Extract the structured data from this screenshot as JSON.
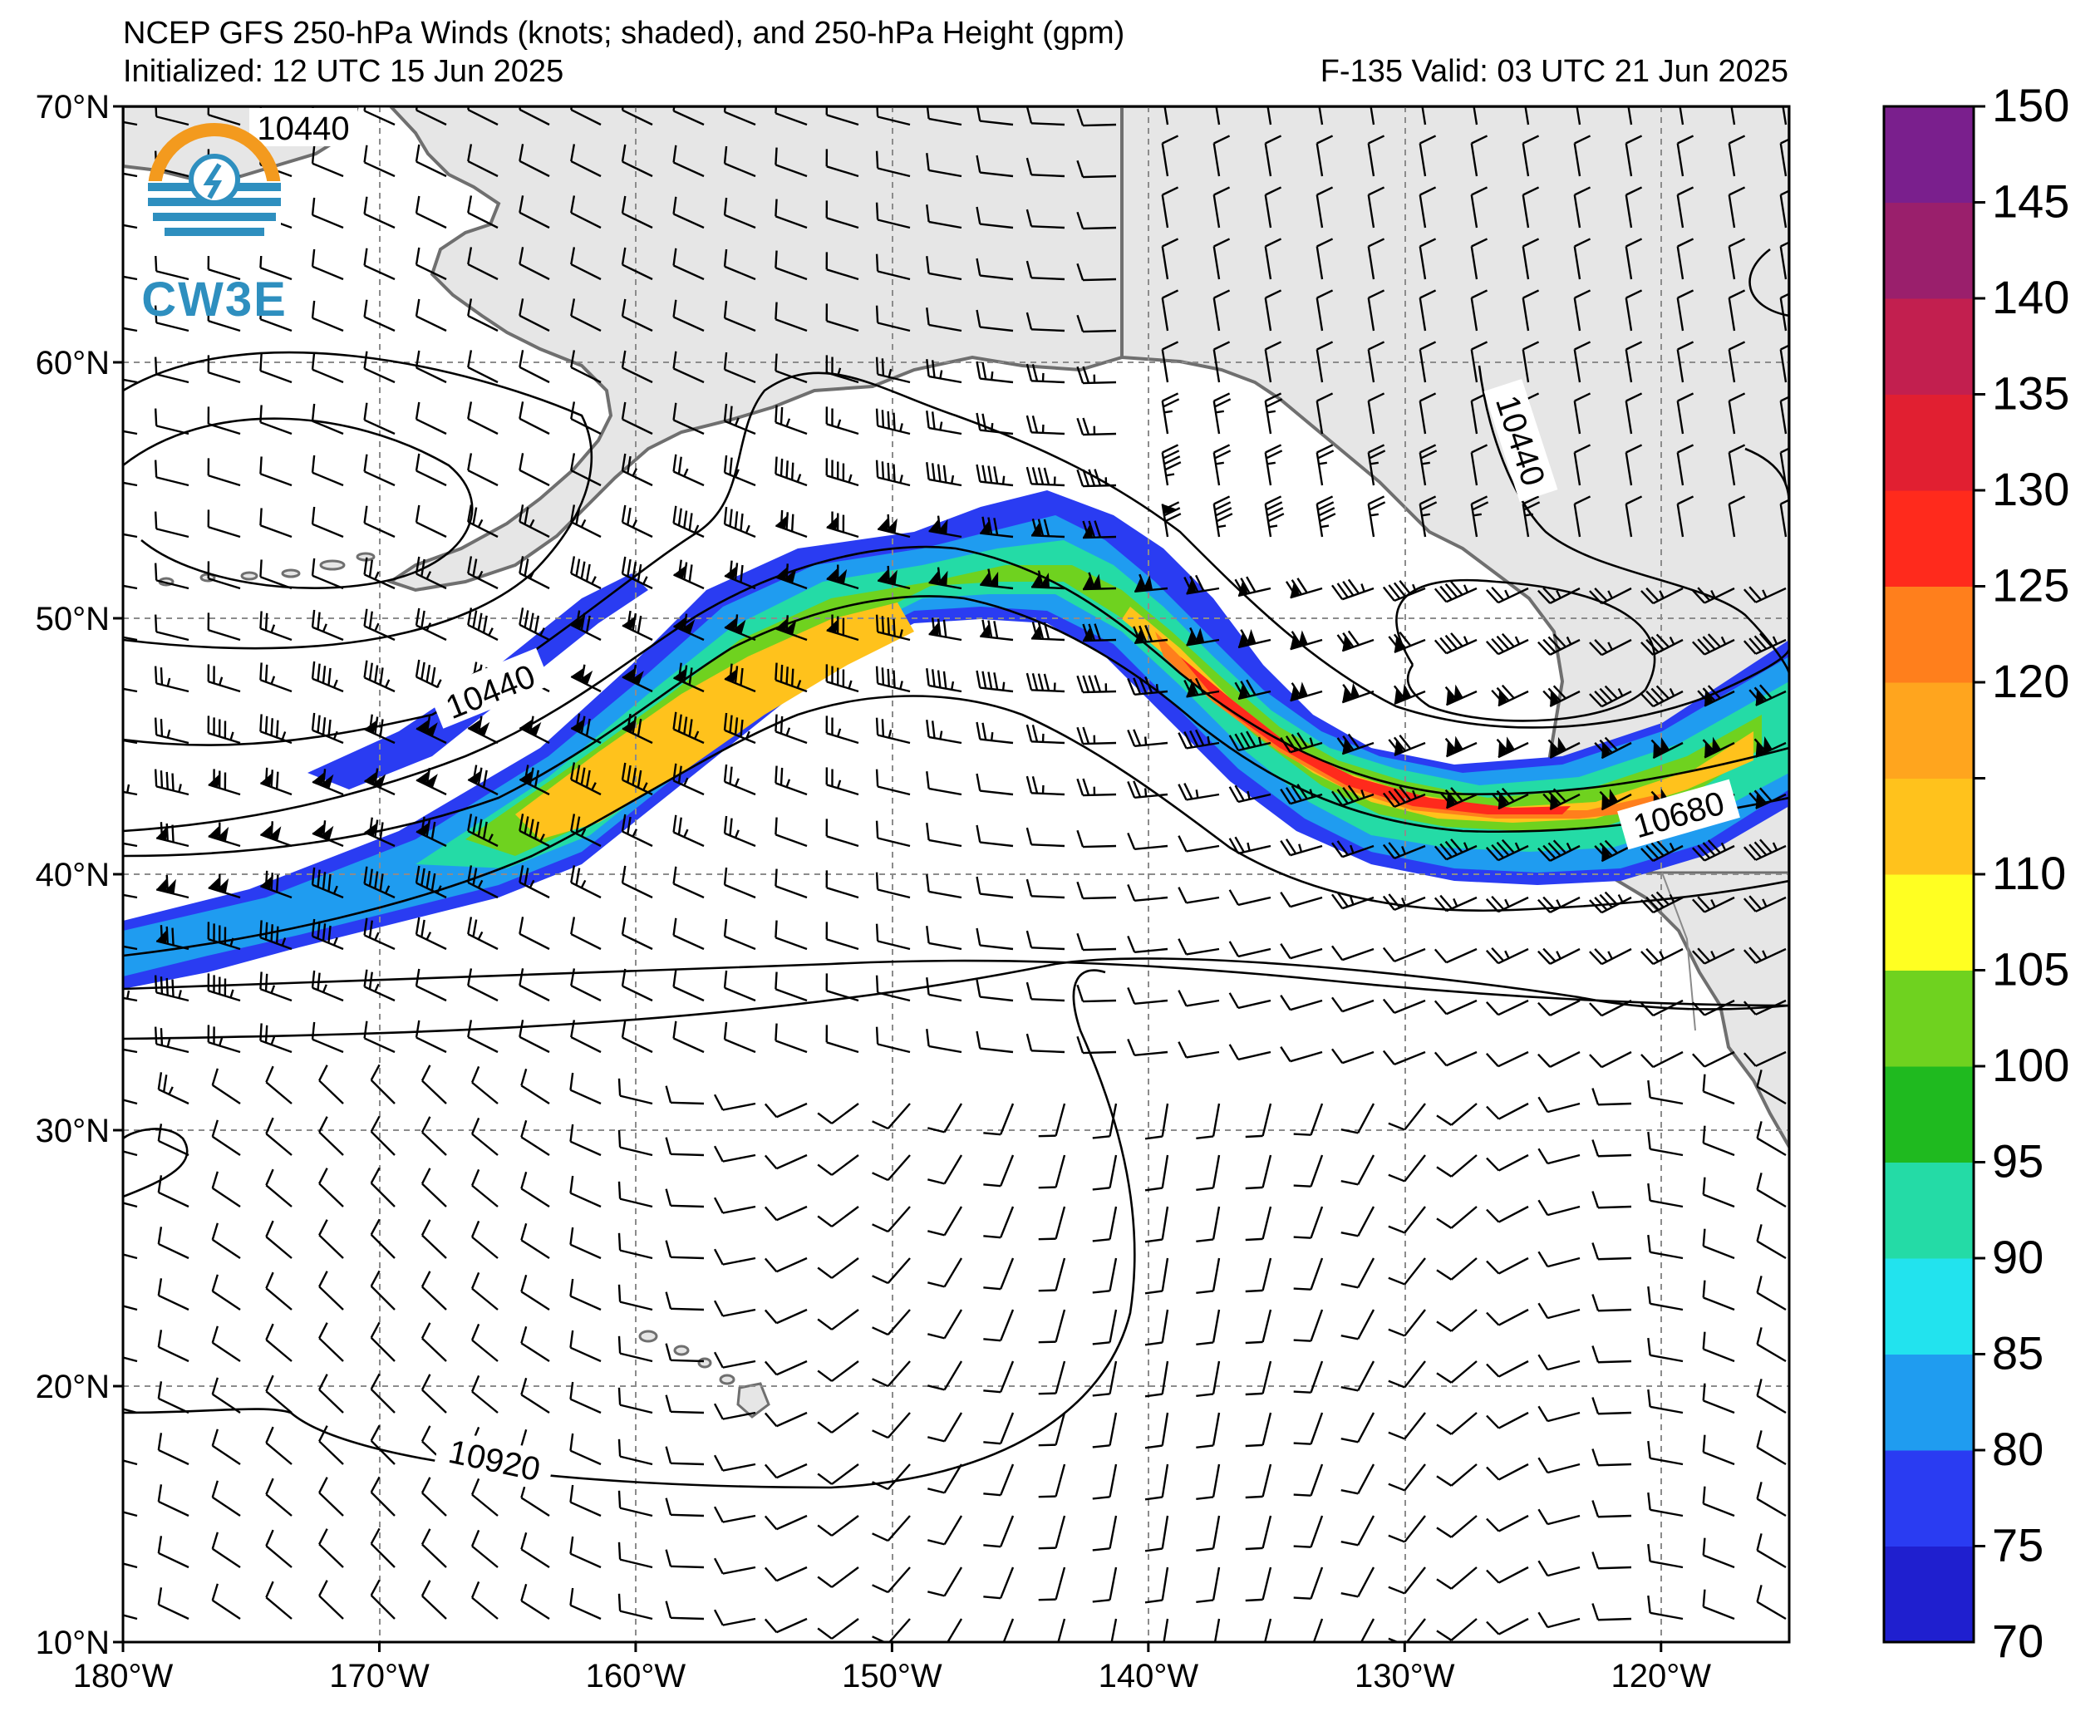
{
  "header": {
    "title": "NCEP GFS 250-hPa Winds (knots; shaded), and 250-hPa Height (gpm)",
    "initialized": "Initialized: 12 UTC 15 Jun 2025",
    "valid": "F-135  Valid: 03 UTC 21 Jun 2025"
  },
  "logo": {
    "text": "CW3E",
    "colors": {
      "orange": "#f39a1e",
      "blue": "#2e8fbf"
    }
  },
  "map": {
    "lat_labels": [
      "70°N",
      "60°N",
      "50°N",
      "40°N",
      "30°N",
      "20°N",
      "10°N"
    ],
    "lon_labels": [
      "180°W",
      "170°W",
      "160°W",
      "150°W",
      "140°W",
      "130°W",
      "120°W"
    ],
    "extent": {
      "lon_min": -180,
      "lon_max": -115,
      "lat_min": 10,
      "lat_max": 70
    },
    "grid": true,
    "land_color": "#e6e6e6",
    "coast_color": "#6f6f6f"
  },
  "contours": {
    "labels": [
      {
        "text": "10440"
      },
      {
        "text": "10440"
      },
      {
        "text": "10440"
      },
      {
        "text": "10680"
      },
      {
        "text": "10920"
      }
    ]
  },
  "colorbar": {
    "ticks": [
      "70",
      "75",
      "80",
      "85",
      "90",
      "95",
      "100",
      "105",
      "110",
      "115",
      "120",
      "125",
      "130",
      "135",
      "140",
      "145",
      "150"
    ],
    "tick_labels_shown": [
      "70",
      "75",
      "80",
      "85",
      "90",
      "95",
      "100",
      "105",
      "110",
      "120",
      "125",
      "130",
      "135",
      "140",
      "145",
      "150"
    ],
    "colors": [
      "#1f1fcf",
      "#2a3cf2",
      "#1f9cf0",
      "#22e3ee",
      "#24dba6",
      "#1fba1f",
      "#6fd21f",
      "#ffff22",
      "#ffc21c",
      "#ffa51e",
      "#ff7f1c",
      "#ff2a1c",
      "#e11f31",
      "#c21f4f",
      "#9a1f6c",
      "#7a1f8d"
    ]
  }
}
